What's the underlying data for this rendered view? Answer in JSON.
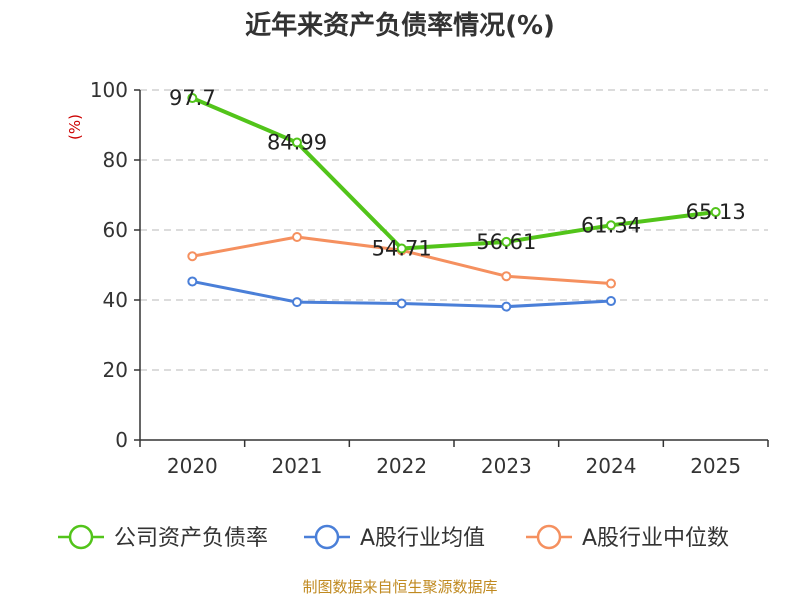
{
  "chart_data": {
    "type": "line",
    "title": "近年来资产负债率情况(%)",
    "ylabel": "(%)",
    "ylim": [
      0,
      100
    ],
    "yticks": [
      0,
      20,
      40,
      60,
      80,
      100
    ],
    "categories": [
      "2020",
      "2021",
      "2022",
      "2023",
      "2024",
      "2025"
    ],
    "series": [
      {
        "name": "公司资产负债率",
        "color": "#52c41a",
        "values": [
          97.7,
          84.99,
          54.71,
          56.61,
          61.34,
          65.13
        ],
        "labels": [
          "97.7",
          "84.99",
          "54.71",
          "56.61",
          "61.34",
          "65.13"
        ]
      },
      {
        "name": "A股行业均值",
        "color": "#4a7fd8",
        "values": [
          45.3,
          39.4,
          39.0,
          38.1,
          39.7,
          null
        ]
      },
      {
        "name": "A股行业中位数",
        "color": "#f5905f",
        "values": [
          52.5,
          58.0,
          54.2,
          46.8,
          44.7,
          null
        ]
      }
    ],
    "grid": true,
    "legend": "bottom"
  },
  "footer": {
    "source": "制图数据来自恒生聚源数据库"
  }
}
